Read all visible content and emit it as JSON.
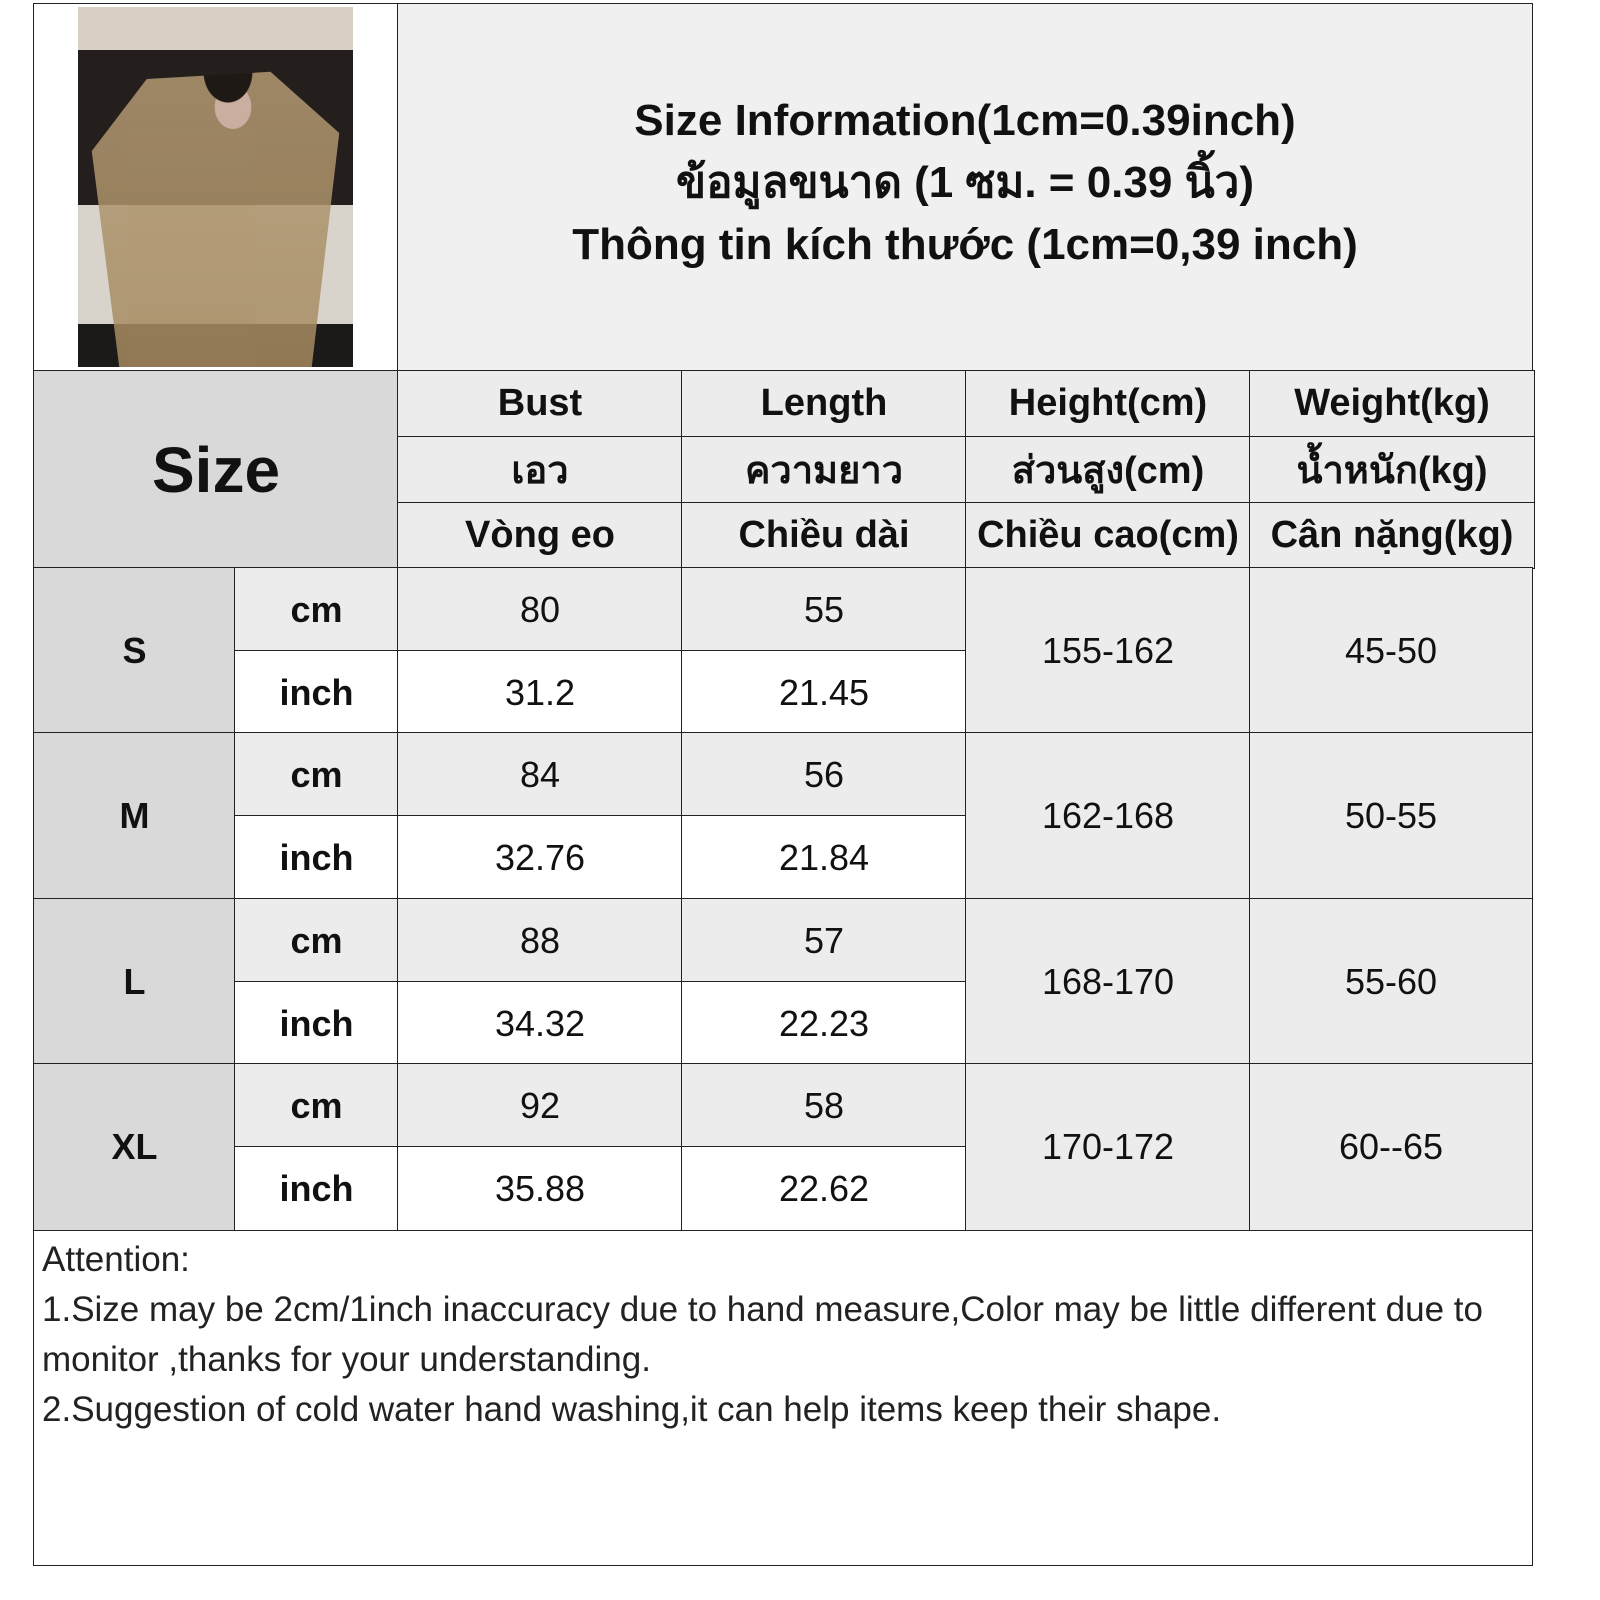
{
  "title": {
    "line1": "Size Information(1cm=0.39inch)",
    "line2": "ข้อมูลขนาด (1 ซม. = 0.39 นิ้ว)",
    "line3": "Thông tin kích thước (1cm=0,39 inch)"
  },
  "header": {
    "size_label": "Size",
    "columns": [
      {
        "en": "Bust",
        "th": "เอว",
        "vi": "Vòng eo"
      },
      {
        "en": "Length",
        "th": "ความยาว",
        "vi": "Chiều dài"
      },
      {
        "en": "Height(cm)",
        "th": "ส่วนสูง(cm)",
        "vi": "Chiều cao(cm)"
      },
      {
        "en": "Weight(kg)",
        "th": "น้ำหนัก(kg)",
        "vi": "Cân nặng(kg)"
      }
    ]
  },
  "units": {
    "cm": "cm",
    "inch": "inch"
  },
  "rows": [
    {
      "size": "S",
      "bust_cm": "80",
      "length_cm": "55",
      "bust_inch": "31.2",
      "length_inch": "21.45",
      "height": "155-162",
      "weight": "45-50"
    },
    {
      "size": "M",
      "bust_cm": "84",
      "length_cm": "56",
      "bust_inch": "32.76",
      "length_inch": "21.84",
      "height": "162-168",
      "weight": "50-55"
    },
    {
      "size": "L",
      "bust_cm": "88",
      "length_cm": "57",
      "bust_inch": "34.32",
      "length_inch": "22.23",
      "height": "168-170",
      "weight": "55-60"
    },
    {
      "size": "XL",
      "bust_cm": "92",
      "length_cm": "58",
      "bust_inch": "35.88",
      "length_inch": "22.62",
      "height": "170-172",
      "weight": "60--65"
    }
  ],
  "notes": {
    "heading": "Attention:",
    "line1": "1.Size may be 2cm/1inch inaccuracy due to hand measure,Color may be little different due to monitor ,thanks for your understanding.",
    "line2": "2.Suggestion of cold water hand washing,it can help items keep their shape."
  }
}
